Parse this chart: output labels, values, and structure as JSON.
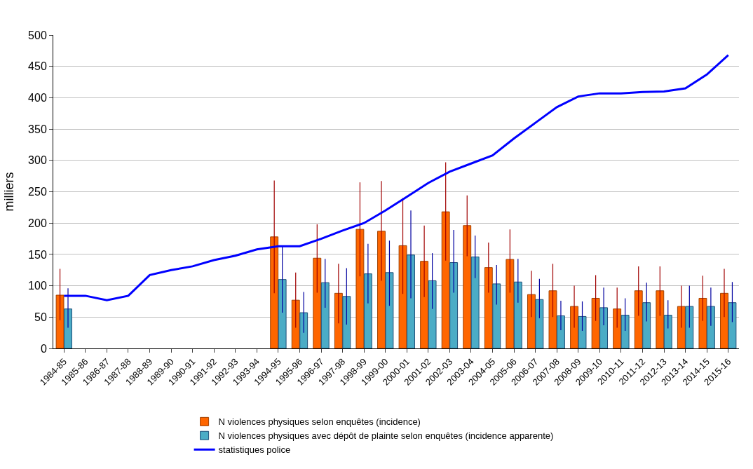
{
  "chart_data": {
    "type": "bar",
    "ylabel": "milliers",
    "categories": [
      "1984-85",
      "1985-86",
      "1986-87",
      "1987-88",
      "1988-89",
      "1989-90",
      "1990-91",
      "1991-92",
      "1992-93",
      "1993-94",
      "1994-95",
      "1995-96",
      "1996-97",
      "1997-98",
      "1998-99",
      "1999-00",
      "2000-01",
      "2001-02",
      "2002-03",
      "2003-04",
      "2004-05",
      "2005-06",
      "2006-07",
      "2007-08",
      "2008-09",
      "2009-10",
      "2010-11",
      "2011-12",
      "2012-13",
      "2013-14",
      "2014-15",
      "2015-16"
    ],
    "series": [
      {
        "name": "N violences physiques selon enquêtes (incidence)",
        "color": "#ff6600",
        "values": [
          85,
          null,
          null,
          null,
          null,
          null,
          null,
          null,
          null,
          null,
          178,
          77,
          144,
          88,
          190,
          187,
          164,
          139,
          218,
          196,
          129,
          142,
          86,
          92,
          67,
          80,
          63,
          92,
          92,
          67,
          80,
          88
        ],
        "errors": [
          [
            45,
            127
          ],
          null,
          null,
          null,
          null,
          null,
          null,
          null,
          null,
          null,
          [
            88,
            268
          ],
          [
            33,
            121
          ],
          [
            89,
            198
          ],
          [
            40,
            135
          ],
          [
            115,
            265
          ],
          [
            108,
            267
          ],
          [
            87,
            240
          ],
          [
            82,
            196
          ],
          [
            140,
            297
          ],
          [
            147,
            244
          ],
          [
            89,
            169
          ],
          [
            89,
            190
          ],
          [
            50,
            124
          ],
          [
            50,
            135
          ],
          [
            33,
            100
          ],
          [
            44,
            117
          ],
          [
            33,
            97
          ],
          [
            52,
            131
          ],
          [
            52,
            131
          ],
          [
            33,
            100
          ],
          [
            44,
            116
          ],
          [
            50,
            127
          ]
        ]
      },
      {
        "name": "N violences physiques avec dépôt de plainte selon enquêtes (incidence apparente)",
        "color": "#4bacc6",
        "values": [
          63,
          null,
          null,
          null,
          null,
          null,
          null,
          null,
          null,
          null,
          110,
          57,
          105,
          83,
          119,
          121,
          149,
          108,
          137,
          146,
          103,
          106,
          78,
          52,
          51,
          65,
          53,
          73,
          53,
          67,
          67,
          73
        ],
        "errors": [
          [
            33,
            96
          ],
          null,
          null,
          null,
          null,
          null,
          null,
          null,
          null,
          null,
          [
            57,
            163
          ],
          [
            25,
            90
          ],
          [
            65,
            143
          ],
          [
            38,
            128
          ],
          [
            72,
            167
          ],
          [
            68,
            172
          ],
          [
            80,
            220
          ],
          [
            63,
            152
          ],
          [
            89,
            189
          ],
          [
            112,
            180
          ],
          [
            70,
            133
          ],
          [
            73,
            143
          ],
          [
            48,
            111
          ],
          [
            29,
            76
          ],
          [
            28,
            75
          ],
          [
            37,
            97
          ],
          [
            28,
            80
          ],
          [
            43,
            105
          ],
          [
            32,
            77
          ],
          [
            33,
            100
          ],
          [
            36,
            97
          ],
          [
            42,
            106
          ]
        ]
      },
      {
        "name": "statistiques police",
        "type": "line",
        "color": "#0000ff",
        "line_style": "solid",
        "marker": "none",
        "values": [
          84,
          84,
          77,
          84,
          117,
          125,
          131,
          141,
          148,
          158,
          163,
          163,
          175,
          188,
          200,
          220,
          242,
          264,
          282,
          295,
          308,
          335,
          360,
          385,
          402,
          407,
          407,
          409,
          410,
          415,
          437,
          468
        ]
      }
    ],
    "ylim": [
      0,
      500
    ],
    "yticks": [
      0,
      50,
      100,
      150,
      200,
      250,
      300,
      350,
      400,
      450,
      500
    ],
    "grid": "y",
    "legend": "bottom"
  }
}
